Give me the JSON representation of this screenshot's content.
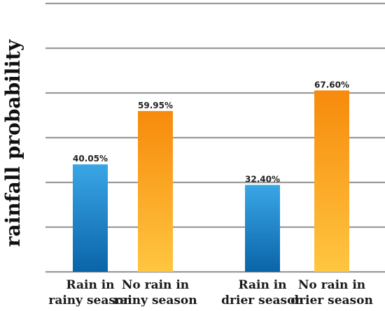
{
  "chart_data": {
    "type": "bar",
    "ylabel": "rainfall probability",
    "xlabel": "",
    "ylim": [
      0,
      100
    ],
    "grid": true,
    "categories": [
      [
        "Rain in",
        "rainy season"
      ],
      [
        "No rain in",
        "rainy season"
      ],
      [
        "Rain in",
        "drier season"
      ],
      [
        "No rain in",
        "drier season"
      ]
    ],
    "values": [
      40.05,
      59.95,
      32.4,
      67.6
    ],
    "data_labels": [
      "40.05%",
      "59.95%",
      "32.40%",
      "67.60%"
    ],
    "bar_kinds": [
      "rain",
      "no-rain",
      "rain",
      "no-rain"
    ],
    "colors": {
      "rain_top": "#3aa6e6",
      "rain_bottom": "#0a64a8",
      "no_rain_top": "#f78a0c",
      "no_rain_bottom": "#ffc640"
    }
  }
}
